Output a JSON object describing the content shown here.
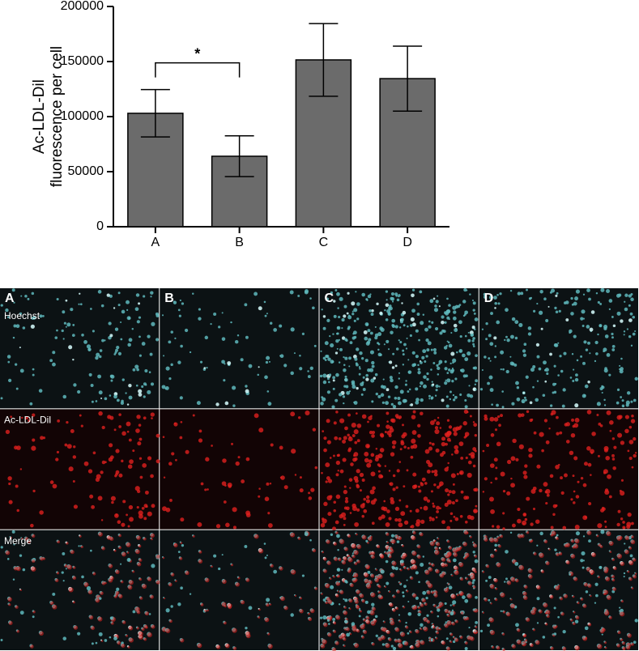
{
  "chart_data": {
    "type": "bar",
    "ylabel": [
      "Ac-LDL-Dil",
      "fluorescence per cell"
    ],
    "categories": [
      "A",
      "B",
      "C",
      "D"
    ],
    "values": [
      103000,
      64000,
      151500,
      134500
    ],
    "errors": [
      21500,
      18500,
      33000,
      29500
    ],
    "color": "#6b6b6b",
    "ylim": [
      0,
      200000
    ],
    "yticks": [
      0,
      50000,
      100000,
      150000,
      200000
    ],
    "significance": [
      {
        "label": "*",
        "pair": [
          "A",
          "B"
        ]
      }
    ]
  },
  "panels": {
    "columns": [
      "A",
      "B",
      "C",
      "D"
    ],
    "rows": [
      "Hoechst",
      "Ac-LDL-Dil",
      "Merge"
    ]
  }
}
